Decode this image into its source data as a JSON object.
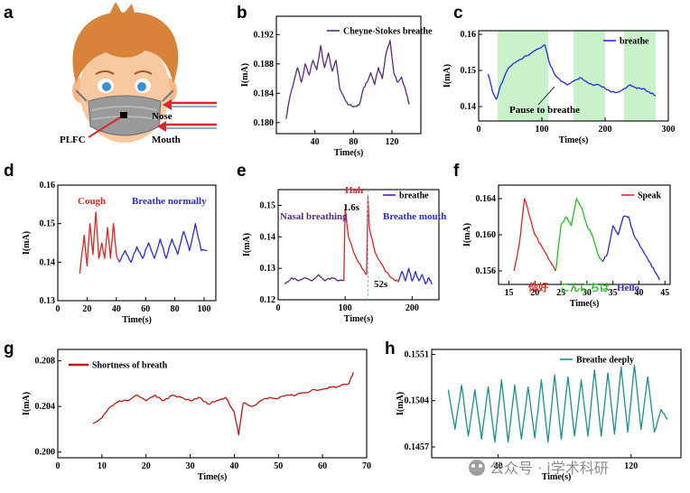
{
  "panel_labels": {
    "a": "a",
    "b": "b",
    "c": "c",
    "d": "d",
    "e": "e",
    "f": "f",
    "g": "g",
    "h": "h"
  },
  "illustration": {
    "nose_label": "Nose",
    "mouth_label": "Mouth",
    "sensor_label": "PLFC",
    "colors": {
      "hair": "#d9823a",
      "skin": "#f7c9a0",
      "mask": "#9a9a9a",
      "arrow": "#d42a2a"
    }
  },
  "watermark": {
    "text": "公众号 · i学术科研"
  },
  "chart_data": [
    {
      "id": "b",
      "type": "line",
      "xlabel": "Time(s)",
      "ylabel": "I(mA)",
      "xlim": [
        0,
        150
      ],
      "ylim": [
        0.1785,
        0.1945
      ],
      "xticks": [
        40,
        80,
        120
      ],
      "yticks": [
        0.18,
        0.184,
        0.188,
        0.192
      ],
      "ytick_labels": [
        "0.180",
        "0.184",
        "0.188",
        "0.192"
      ],
      "legend": {
        "position": "top-right"
      },
      "series": [
        {
          "name": "Cheyne-Stokes breathe",
          "color": "#5b2a80",
          "x": [
            10,
            14,
            18,
            22,
            26,
            30,
            34,
            38,
            42,
            46,
            50,
            54,
            58,
            62,
            66,
            70,
            74,
            78,
            82,
            86,
            90,
            94,
            98,
            102,
            106,
            110,
            114,
            118,
            122,
            126,
            130,
            134,
            138
          ],
          "y": [
            0.1805,
            0.1835,
            0.1855,
            0.1875,
            0.1855,
            0.188,
            0.1865,
            0.1885,
            0.1872,
            0.1905,
            0.1875,
            0.1895,
            0.187,
            0.1885,
            0.1845,
            0.1835,
            0.1825,
            0.1823,
            0.1822,
            0.1824,
            0.1845,
            0.1855,
            0.1868,
            0.1852,
            0.1875,
            0.186,
            0.1895,
            0.1912,
            0.1868,
            0.1855,
            0.1862,
            0.1845,
            0.1825
          ]
        }
      ]
    },
    {
      "id": "c",
      "type": "line",
      "xlabel": "Time(s)",
      "ylabel": "I(mA)",
      "xlim": [
        0,
        300
      ],
      "ylim": [
        0.136,
        0.161
      ],
      "xticks": [
        0,
        100,
        200,
        300
      ],
      "yticks": [
        0.14,
        0.15,
        0.16
      ],
      "ytick_labels": [
        "0.14",
        "0.15",
        "0.16"
      ],
      "legend": {
        "position": "top-right"
      },
      "annotation": "Pause to breathe",
      "shaded": [
        [
          30,
          110
        ],
        [
          150,
          200
        ],
        [
          230,
          280
        ]
      ],
      "shade_color": "#bff0c2",
      "series": [
        {
          "name": "breathe",
          "color": "#1f2ee0",
          "x": [
            15,
            22,
            28,
            35,
            45,
            55,
            65,
            75,
            85,
            95,
            105,
            112,
            120,
            130,
            140,
            150,
            160,
            170,
            180,
            190,
            200,
            210,
            220,
            230,
            240,
            250,
            260,
            270,
            280
          ],
          "y": [
            0.149,
            0.144,
            0.142,
            0.146,
            0.15,
            0.152,
            0.153,
            0.154,
            0.155,
            0.156,
            0.157,
            0.152,
            0.149,
            0.147,
            0.146,
            0.147,
            0.148,
            0.147,
            0.146,
            0.146,
            0.145,
            0.144,
            0.144,
            0.145,
            0.146,
            0.145,
            0.145,
            0.144,
            0.143
          ]
        }
      ]
    },
    {
      "id": "d",
      "type": "line",
      "xlabel": "Time(s)",
      "ylabel": "I(mA)",
      "xlim": [
        0,
        108
      ],
      "ylim": [
        0.13,
        0.16
      ],
      "xticks": [
        0,
        20,
        40,
        60,
        80,
        100
      ],
      "yticks": [
        0.13,
        0.14,
        0.15,
        0.16
      ],
      "ytick_labels": [
        "0.13",
        "0.14",
        "0.15",
        "0.16"
      ],
      "annotations": [
        "Cough",
        "Breathe normally"
      ],
      "series": [
        {
          "name": "Cough",
          "color": "#e02424",
          "x": [
            15,
            18,
            20,
            22,
            24,
            26,
            28,
            30,
            32,
            34,
            36,
            38,
            40,
            42
          ],
          "y": [
            0.137,
            0.147,
            0.139,
            0.15,
            0.142,
            0.153,
            0.141,
            0.145,
            0.141,
            0.149,
            0.141,
            0.15,
            0.142,
            0.14
          ]
        },
        {
          "name": "Breathe normally",
          "color": "#2a2ae0",
          "x": [
            42,
            46,
            50,
            54,
            58,
            62,
            66,
            70,
            74,
            78,
            82,
            86,
            90,
            94,
            98,
            102
          ],
          "y": [
            0.14,
            0.143,
            0.14,
            0.144,
            0.141,
            0.145,
            0.141,
            0.146,
            0.141,
            0.146,
            0.142,
            0.148,
            0.143,
            0.15,
            0.143,
            0.143
          ]
        }
      ]
    },
    {
      "id": "e",
      "type": "line",
      "xlabel": "Time(s)",
      "ylabel": "I(mA)",
      "xlim": [
        0,
        240
      ],
      "ylim": [
        0.12,
        0.155
      ],
      "xticks": [
        0,
        100,
        200
      ],
      "yticks": [
        0.12,
        0.13,
        0.14,
        0.15
      ],
      "ytick_labels": [
        "0.12",
        "0.13",
        "0.14",
        "0.15"
      ],
      "legend": {
        "position": "top-right"
      },
      "annotations": [
        "Nasal breathing",
        "Hah",
        "1.6s",
        "Breathe mouth",
        "52s"
      ],
      "series": [
        {
          "name": "Nasal breathing",
          "color": "#5b2a80",
          "x": [
            10,
            20,
            30,
            40,
            50,
            60,
            70,
            80,
            90,
            98
          ],
          "y": [
            0.125,
            0.127,
            0.126,
            0.127,
            0.126,
            0.128,
            0.126,
            0.127,
            0.126,
            0.126
          ]
        },
        {
          "name": "Hah",
          "color": "#e02424",
          "x": [
            98,
            100,
            105,
            115,
            125,
            132,
            134,
            136,
            145,
            160,
            175,
            180
          ],
          "y": [
            0.126,
            0.149,
            0.14,
            0.134,
            0.13,
            0.128,
            0.153,
            0.143,
            0.135,
            0.129,
            0.126,
            0.126
          ]
        },
        {
          "name": "breathe",
          "color": "#2a2ae0",
          "x": [
            180,
            185,
            190,
            195,
            200,
            205,
            210,
            215,
            220,
            225,
            230
          ],
          "y": [
            0.126,
            0.129,
            0.126,
            0.13,
            0.126,
            0.129,
            0.126,
            0.128,
            0.125,
            0.127,
            0.125
          ]
        }
      ]
    },
    {
      "id": "f",
      "type": "line",
      "xlabel": "Time(s)",
      "ylabel": "I(mA)",
      "xlim": [
        13,
        46
      ],
      "ylim": [
        0.1545,
        0.1655
      ],
      "xticks": [
        15,
        20,
        25,
        30,
        35,
        40,
        45
      ],
      "yticks": [
        0.156,
        0.16,
        0.164
      ],
      "ytick_labels": [
        "0.156",
        "0.160",
        "0.164"
      ],
      "legend": {
        "position": "top-right"
      },
      "annotations": [
        "你好",
        "こんにちは",
        "Hello"
      ],
      "series": [
        {
          "name": "Speak",
          "color": "#e02424",
          "x": [
            16,
            17,
            18,
            19,
            20,
            21,
            22,
            23,
            24
          ],
          "y": [
            0.156,
            0.159,
            0.164,
            0.162,
            0.16,
            0.159,
            0.158,
            0.157,
            0.156
          ]
        },
        {
          "name": "こんにちは",
          "color": "#22c022",
          "x": [
            24,
            25,
            26,
            27,
            28,
            29,
            30,
            31,
            32,
            33
          ],
          "y": [
            0.156,
            0.161,
            0.162,
            0.161,
            0.164,
            0.163,
            0.161,
            0.16,
            0.158,
            0.157
          ]
        },
        {
          "name": "Hello",
          "color": "#2a2ae0",
          "x": [
            33,
            34,
            35,
            36,
            37,
            38,
            39,
            40,
            41,
            42,
            43,
            44
          ],
          "y": [
            0.157,
            0.158,
            0.161,
            0.16,
            0.162,
            0.162,
            0.16,
            0.159,
            0.158,
            0.157,
            0.156,
            0.155
          ]
        }
      ]
    },
    {
      "id": "g",
      "type": "line",
      "xlabel": "Time(s)",
      "ylabel": "I(mA)",
      "xlim": [
        0,
        70
      ],
      "ylim": [
        0.1995,
        0.209
      ],
      "xticks": [
        0,
        10,
        20,
        30,
        40,
        50,
        60,
        70
      ],
      "yticks": [
        0.2,
        0.204,
        0.208
      ],
      "ytick_labels": [
        "0.200",
        "0.204",
        "0.208"
      ],
      "legend": {
        "position": "top-left"
      },
      "series": [
        {
          "name": "Shortness of breath",
          "color": "#c01818",
          "x": [
            8,
            10,
            12,
            14,
            16,
            18,
            20,
            22,
            24,
            26,
            28,
            30,
            32,
            34,
            36,
            38,
            40,
            41,
            42,
            44,
            46,
            48,
            50,
            52,
            54,
            56,
            58,
            60,
            62,
            64,
            66,
            67
          ],
          "y": [
            0.2025,
            0.203,
            0.204,
            0.2045,
            0.2045,
            0.205,
            0.2045,
            0.205,
            0.2045,
            0.205,
            0.2048,
            0.2045,
            0.2048,
            0.2042,
            0.2045,
            0.2048,
            0.2035,
            0.2015,
            0.2043,
            0.204,
            0.2045,
            0.2048,
            0.2047,
            0.205,
            0.205,
            0.2052,
            0.2055,
            0.2055,
            0.2057,
            0.2058,
            0.206,
            0.207
          ]
        }
      ]
    },
    {
      "id": "h",
      "type": "line",
      "xlabel": "Time(s)",
      "ylabel": "I(mA)",
      "xlim": [
        0,
        150
      ],
      "ylim": [
        0.1446,
        0.1556
      ],
      "xticks": [
        40,
        120
      ],
      "yticks": [
        0.1457,
        0.1504,
        0.1551
      ],
      "ytick_labels": [
        "0.1457",
        "0.1504",
        "0.1551"
      ],
      "legend": {
        "position": "top-right"
      },
      "series": [
        {
          "name": "Breathe deeply",
          "color": "#1a9090",
          "x": [
            10,
            14,
            18,
            22,
            26,
            30,
            34,
            38,
            42,
            46,
            50,
            54,
            58,
            62,
            66,
            70,
            74,
            78,
            82,
            86,
            90,
            94,
            98,
            102,
            106,
            110,
            114,
            118,
            122,
            126,
            130,
            134,
            138,
            142
          ],
          "y": [
            0.1515,
            0.1475,
            0.152,
            0.1468,
            0.1515,
            0.1465,
            0.1518,
            0.1462,
            0.1525,
            0.1462,
            0.152,
            0.1465,
            0.1518,
            0.1466,
            0.1525,
            0.1462,
            0.153,
            0.1465,
            0.1528,
            0.1468,
            0.1525,
            0.1468,
            0.1535,
            0.1468,
            0.1532,
            0.147,
            0.1538,
            0.1472,
            0.154,
            0.1475,
            0.1528,
            0.1472,
            0.1495,
            0.1485
          ]
        }
      ]
    }
  ]
}
